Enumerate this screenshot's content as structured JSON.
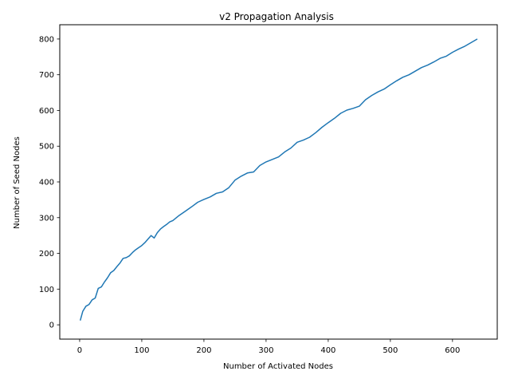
{
  "chart_data": {
    "type": "line",
    "title": "v2 Propagation Analysis",
    "xlabel": "Number of Activated Nodes",
    "ylabel": "Number of Seed Nodes",
    "xlim": [
      -32,
      672
    ],
    "ylim": [
      -40,
      840
    ],
    "xticks": [
      0,
      100,
      200,
      300,
      400,
      500,
      600
    ],
    "yticks": [
      0,
      100,
      200,
      300,
      400,
      500,
      600,
      700,
      800
    ],
    "grid": false,
    "line_color": "#1f77b4",
    "series": [
      {
        "x": [
          1,
          5,
          10,
          15,
          20,
          25,
          30,
          35,
          40,
          45,
          50,
          55,
          60,
          65,
          70,
          75,
          80,
          85,
          90,
          95,
          100,
          105,
          110,
          115,
          120,
          125,
          130,
          135,
          140,
          145,
          150,
          160,
          170,
          180,
          190,
          200,
          210,
          220,
          230,
          240,
          250,
          260,
          270,
          280,
          290,
          300,
          310,
          320,
          330,
          340,
          350,
          360,
          370,
          380,
          390,
          400,
          410,
          420,
          430,
          440,
          450,
          460,
          470,
          480,
          490,
          500,
          510,
          520,
          530,
          540,
          550,
          560,
          570,
          580,
          590,
          600,
          610,
          620,
          630,
          640
        ],
        "y": [
          12,
          38,
          52,
          57,
          70,
          75,
          102,
          106,
          120,
          132,
          146,
          152,
          163,
          173,
          186,
          188,
          193,
          202,
          210,
          216,
          222,
          230,
          240,
          250,
          243,
          258,
          268,
          275,
          281,
          288,
          292,
          306,
          318,
          330,
          343,
          351,
          358,
          368,
          372,
          384,
          405,
          416,
          425,
          428,
          446,
          456,
          463,
          470,
          484,
          495,
          511,
          517,
          525,
          538,
          553,
          566,
          578,
          592,
          601,
          606,
          612,
          630,
          642,
          652,
          660,
          672,
          683,
          693,
          700,
          710,
          720,
          727,
          736,
          746,
          752,
          763,
          772,
          780,
          790,
          800
        ]
      }
    ]
  }
}
